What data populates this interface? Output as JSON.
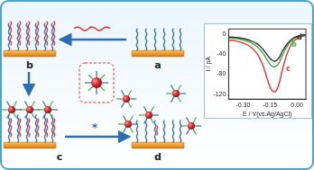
{
  "diagram": {
    "steps": [
      "a",
      "b",
      "c",
      "d"
    ],
    "arrow_label": "*"
  },
  "chart_data": {
    "type": "line",
    "x_label": "E / V(vs.Ag/AgCl)",
    "y_label": "I / pA",
    "x": [
      -0.38,
      -0.34,
      -0.3,
      -0.26,
      -0.22,
      -0.19,
      -0.16,
      -0.14,
      -0.12,
      -0.1,
      -0.08,
      -0.05,
      -0.02,
      0.02,
      0.05
    ],
    "series": [
      {
        "name": "d",
        "color": "#333333",
        "values": [
          -6,
          -7,
          -9,
          -13,
          -20,
          -30,
          -44,
          -52,
          -54,
          -48,
          -34,
          -18,
          -8,
          -3,
          -1
        ]
      },
      {
        "name": "b",
        "color": "#3cb043",
        "values": [
          -8,
          -9,
          -12,
          -17,
          -26,
          -38,
          -55,
          -64,
          -65,
          -58,
          -42,
          -22,
          -10,
          -4,
          -2
        ]
      },
      {
        "name": "c",
        "color": "#e8312f",
        "values": [
          -12,
          -14,
          -18,
          -25,
          -40,
          -62,
          -95,
          -112,
          -115,
          -100,
          -70,
          -35,
          -15,
          -6,
          -3
        ]
      }
    ],
    "xlim": [
      -0.38,
      0.05
    ],
    "xticks": [
      {
        "value": -0.3,
        "label": "-0.30"
      },
      {
        "value": -0.15,
        "label": "-0.15"
      },
      {
        "value": 0,
        "label": "0.00"
      }
    ],
    "ylim": [
      -130,
      10
    ],
    "yticks": [
      0,
      -40,
      -80,
      -120
    ],
    "grid": false
  }
}
